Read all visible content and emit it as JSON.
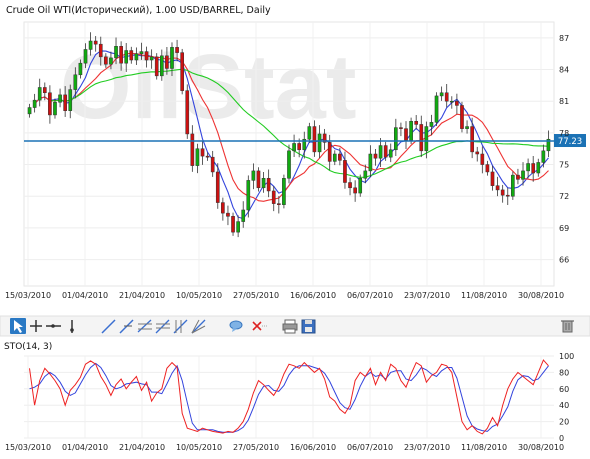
{
  "chart_title": "Crude Oil WTI(Исторический), 1.00 USD/BARREL, Daily",
  "watermark": "OilStat",
  "toolbar": {
    "tools": [
      "cursor-icon",
      "crosshair-icon",
      "horizontal-line-icon",
      "vertical-line-icon",
      "trend-line-icon",
      "ray-line-icon",
      "channel-icon",
      "fan-icon",
      "fibonacci-icon",
      "gann-icon",
      "comment-icon",
      "delete-icon",
      "print-icon",
      "save-icon",
      "trash-icon"
    ]
  },
  "colors": {
    "up": "#11aa11",
    "down": "#cc1111",
    "ma_fast": "#3344dd",
    "ma_mid": "#ee3333",
    "ma_slow": "#22cc22",
    "hline": "#1b72b5",
    "sto_k": "#ee2222",
    "sto_d": "#3344dd"
  },
  "chart_data": [
    {
      "type": "candlestick",
      "title": "Crude Oil WTI(Исторический), 1.00 USD/BARREL, Daily",
      "x_ticks": [
        "15/03/2010",
        "01/04/2010",
        "21/04/2010",
        "10/05/2010",
        "27/05/2010",
        "16/06/2010",
        "06/07/2010",
        "23/07/2010",
        "11/08/2010",
        "30/08/2010"
      ],
      "y_ticks": [
        66,
        69,
        72,
        75,
        78,
        81,
        84,
        87
      ],
      "ylim": [
        63.5,
        88.5
      ],
      "horizontal_line": 77.23,
      "horizontal_line_label": "77.23",
      "close": [
        80.4,
        81.1,
        82.3,
        81.8,
        79.7,
        80.9,
        81.6,
        80.1,
        82.1,
        83.5,
        84.6,
        85.9,
        86.7,
        86.4,
        85.2,
        84.5,
        85.1,
        86.2,
        84.6,
        85.8,
        84.9,
        85.5,
        85.7,
        84.9,
        85.2,
        83.4,
        85.3,
        84.1,
        86.1,
        85.6,
        82.0,
        77.9,
        74.9,
        76.5,
        75.8,
        75.7,
        74.3,
        71.4,
        70.4,
        70.1,
        68.6,
        69.6,
        70.7,
        73.5,
        74.4,
        72.8,
        73.7,
        72.5,
        71.3,
        71.2,
        73.7,
        76.3,
        77.0,
        76.4,
        77.4,
        78.6,
        76.2,
        77.9,
        77.1,
        75.3,
        76.0,
        75.4,
        73.3,
        72.8,
        72.3,
        73.7,
        74.4,
        76.0,
        75.6,
        76.8,
        75.7,
        76.4,
        78.5,
        78.4,
        77.3,
        79.1,
        78.8,
        76.3,
        78.6,
        79.0,
        81.5,
        81.8,
        81.0,
        81.0,
        80.6,
        78.4,
        78.6,
        76.2,
        76.0,
        75.0,
        74.3,
        73.0,
        72.6,
        72.1,
        72.0,
        74.0,
        73.6,
        74.4,
        75.1,
        74.2,
        75.2,
        76.3,
        77.4
      ],
      "stochastic": {
        "title": "STO(14, 3)",
        "y_ticks": [
          0,
          20,
          40,
          60,
          80,
          100
        ],
        "ylim": [
          0,
          100
        ],
        "k": [
          85,
          40,
          70,
          85,
          78,
          70,
          60,
          40,
          58,
          65,
          74,
          90,
          94,
          90,
          75,
          65,
          52,
          65,
          72,
          60,
          68,
          75,
          58,
          68,
          45,
          55,
          60,
          85,
          92,
          86,
          30,
          12,
          10,
          8,
          12,
          10,
          8,
          7,
          6,
          8,
          7,
          12,
          20,
          35,
          55,
          70,
          65,
          58,
          52,
          62,
          78,
          90,
          88,
          85,
          92,
          86,
          80,
          85,
          72,
          50,
          45,
          35,
          30,
          40,
          70,
          80,
          75,
          85,
          65,
          80,
          70,
          90,
          85,
          70,
          62,
          78,
          92,
          88,
          68,
          76,
          80,
          90,
          88,
          80,
          50,
          20,
          10,
          15,
          8,
          5,
          12,
          25,
          15,
          40,
          60,
          72,
          80,
          75,
          70,
          65,
          80,
          95,
          88
        ],
        "d": [
          60,
          62,
          66,
          75,
          80,
          76,
          68,
          57,
          52,
          55,
          66,
          77,
          86,
          91,
          86,
          76,
          64,
          60,
          62,
          66,
          67,
          68,
          66,
          65,
          56,
          56,
          54,
          66,
          79,
          88,
          70,
          43,
          18,
          10,
          10,
          10,
          10,
          8,
          7,
          7,
          7,
          9,
          13,
          22,
          37,
          53,
          63,
          64,
          58,
          57,
          64,
          77,
          85,
          88,
          88,
          88,
          86,
          84,
          79,
          69,
          56,
          43,
          37,
          35,
          47,
          63,
          75,
          80,
          75,
          77,
          72,
          80,
          82,
          82,
          72,
          70,
          77,
          86,
          83,
          78,
          75,
          82,
          86,
          86,
          73,
          50,
          27,
          15,
          11,
          9,
          8,
          14,
          17,
          27,
          38,
          57,
          71,
          76,
          75,
          70,
          72,
          80,
          88
        ]
      }
    }
  ]
}
